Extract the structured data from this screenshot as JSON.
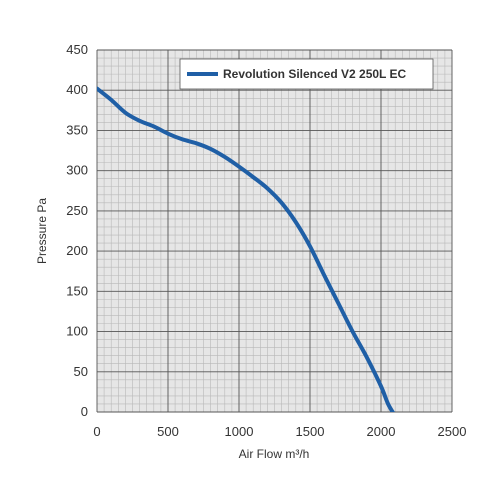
{
  "chart_data": {
    "type": "line",
    "xlabel": "Air Flow m³/h",
    "ylabel": "Pressure Pa",
    "xlim": [
      0,
      2500
    ],
    "ylim": [
      0,
      450
    ],
    "x_ticks": [
      0,
      500,
      1000,
      1500,
      2000,
      2500
    ],
    "y_ticks": [
      0,
      50,
      100,
      150,
      200,
      250,
      300,
      350,
      400,
      450
    ],
    "grid": true,
    "legend_position": "top-right",
    "series": [
      {
        "name": "Revolution Silenced V2 250L EC",
        "color": "#1f5fa6",
        "x": [
          0,
          100,
          200,
          300,
          400,
          500,
          600,
          700,
          800,
          900,
          1000,
          1100,
          1200,
          1300,
          1400,
          1500,
          1600,
          1700,
          1800,
          1900,
          2000,
          2050,
          2100
        ],
        "y": [
          402,
          388,
          372,
          362,
          355,
          346,
          339,
          334,
          327,
          317,
          305,
          292,
          278,
          260,
          236,
          206,
          170,
          135,
          100,
          68,
          32,
          10,
          -5
        ]
      }
    ]
  },
  "colors": {
    "plot_background": "#e6e6e6",
    "grid_major": "#555555",
    "grid_minor": "#b8b8b8",
    "series_line": "#1f5fa6"
  }
}
